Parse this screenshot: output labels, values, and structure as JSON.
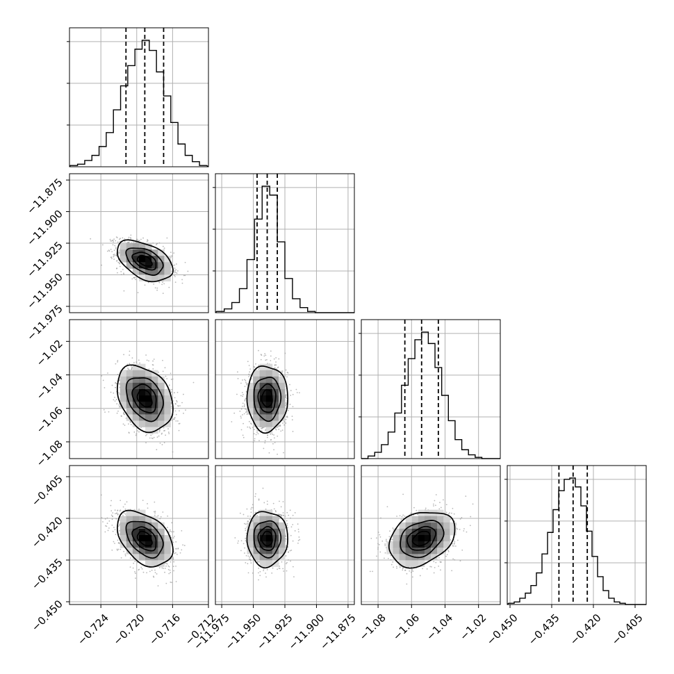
{
  "chart_data": {
    "type": "corner",
    "title": "",
    "grid": true,
    "params": [
      {
        "range": [
          -0.7275,
          -0.712
        ],
        "ticks": [
          -0.724,
          -0.72,
          -0.716,
          -0.712
        ],
        "tick_labels": [
          "−0.724",
          "−0.720",
          "−0.716",
          "−0.712"
        ],
        "quantiles": [
          -0.7212,
          -0.7191,
          -0.717
        ],
        "hist_centers": [
          -0.727,
          -0.7262,
          -0.7254,
          -0.7246,
          -0.7238,
          -0.723,
          -0.7222,
          -0.7214,
          -0.7206,
          -0.7198,
          -0.719,
          -0.7182,
          -0.7174,
          -0.7166,
          -0.7158,
          -0.715,
          -0.7142,
          -0.7134,
          -0.7126
        ],
        "hist_counts": [
          0.01,
          0.02,
          0.05,
          0.09,
          0.16,
          0.27,
          0.45,
          0.64,
          0.8,
          0.93,
          1.0,
          0.92,
          0.75,
          0.56,
          0.35,
          0.18,
          0.09,
          0.04,
          0.01
        ],
        "mean": -0.7191,
        "sd": 0.0015
      },
      {
        "range": [
          -11.98,
          -11.87
        ],
        "ticks": [
          -11.975,
          -11.95,
          -11.925,
          -11.9,
          -11.875
        ],
        "tick_labels": [
          "−11.975",
          "−11.950",
          "−11.925",
          "−11.900",
          "−11.875"
        ],
        "quantiles": [
          -11.947,
          -11.939,
          -11.931
        ],
        "hist_centers": [
          -11.976,
          -11.97,
          -11.964,
          -11.958,
          -11.952,
          -11.946,
          -11.94,
          -11.934,
          -11.928,
          -11.922,
          -11.916,
          -11.91,
          -11.904,
          -11.898,
          -11.892
        ],
        "hist_counts": [
          0.01,
          0.03,
          0.08,
          0.19,
          0.42,
          0.74,
          1.0,
          0.93,
          0.56,
          0.27,
          0.11,
          0.04,
          0.01,
          0.0,
          0.0
        ],
        "mean": -11.939,
        "sd": 0.0078
      },
      {
        "range": [
          -1.09,
          -1.007
        ],
        "ticks": [
          -1.08,
          -1.06,
          -1.04,
          -1.02
        ],
        "tick_labels": [
          "−1.08",
          "−1.06",
          "−1.04",
          "−1.02"
        ],
        "quantiles": [
          -1.064,
          -1.054,
          -1.044
        ],
        "hist_centers": [
          -1.088,
          -1.084,
          -1.08,
          -1.076,
          -1.072,
          -1.068,
          -1.064,
          -1.06,
          -1.056,
          -1.052,
          -1.048,
          -1.044,
          -1.04,
          -1.036,
          -1.032,
          -1.028,
          -1.024,
          -1.02,
          -1.016,
          -1.012
        ],
        "hist_counts": [
          0.0,
          0.02,
          0.05,
          0.11,
          0.21,
          0.36,
          0.58,
          0.79,
          0.94,
          1.0,
          0.91,
          0.72,
          0.5,
          0.3,
          0.15,
          0.07,
          0.03,
          0.01,
          0.0,
          0.0
        ],
        "mean": -1.054,
        "sd": 0.0095
      },
      {
        "range": [
          -0.451,
          -0.401
        ],
        "ticks": [
          -0.45,
          -0.435,
          -0.42,
          -0.405
        ],
        "tick_labels": [
          "−0.450",
          "−0.435",
          "−0.420",
          "−0.405"
        ],
        "quantiles": [
          -0.4324,
          -0.4273,
          -0.4222
        ],
        "hist_centers": [
          -0.4495,
          -0.4475,
          -0.4455,
          -0.4435,
          -0.4415,
          -0.4395,
          -0.4375,
          -0.4355,
          -0.4335,
          -0.4315,
          -0.4295,
          -0.4275,
          -0.4255,
          -0.4235,
          -0.4215,
          -0.4195,
          -0.4175,
          -0.4155,
          -0.4135,
          -0.4115,
          -0.4095,
          -0.4075
        ],
        "hist_counts": [
          0.01,
          0.02,
          0.05,
          0.09,
          0.15,
          0.25,
          0.4,
          0.57,
          0.75,
          0.9,
          0.99,
          1.0,
          0.93,
          0.78,
          0.58,
          0.38,
          0.22,
          0.11,
          0.05,
          0.02,
          0.01,
          0.0
        ],
        "mean": -0.4273,
        "sd": 0.0048
      }
    ],
    "pairs": [
      {
        "row": 1,
        "col": 0,
        "rho": -0.45
      },
      {
        "row": 2,
        "col": 0,
        "rho": -0.3
      },
      {
        "row": 2,
        "col": 1,
        "rho": 0.0
      },
      {
        "row": 3,
        "col": 0,
        "rho": -0.4
      },
      {
        "row": 3,
        "col": 1,
        "rho": 0.0
      },
      {
        "row": 3,
        "col": 2,
        "rho": 0.3
      }
    ],
    "contour_levels_sigma": [
      0.5,
      1.0,
      1.5,
      2.0
    ],
    "colors": {
      "line": "#000000",
      "grid": "#b0b0b0",
      "points": "#9a9a9a"
    }
  }
}
